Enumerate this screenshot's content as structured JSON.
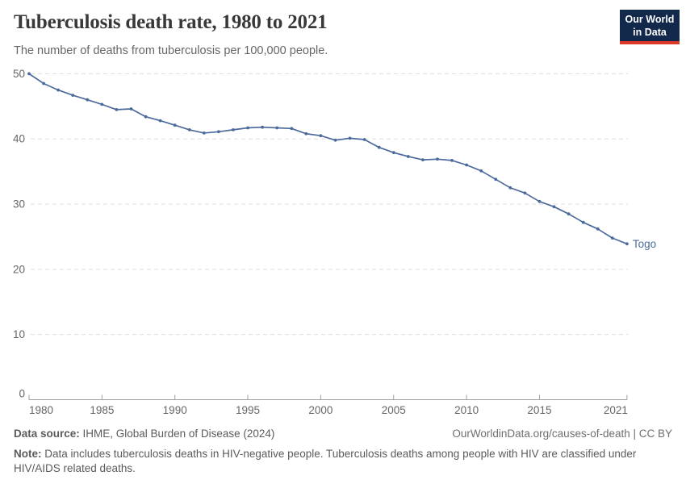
{
  "header": {
    "title": "Tuberculosis death rate, 1980 to 2021",
    "subtitle": "The number of deaths from tuberculosis per 100,000 people."
  },
  "logo": {
    "line1": "Our World",
    "line2": "in Data",
    "bg_color": "#12294B",
    "accent_color": "#DB3A2B"
  },
  "chart_data": {
    "type": "line",
    "title": "Tuberculosis death rate, 1980 to 2021",
    "x": [
      1980,
      1981,
      1982,
      1983,
      1984,
      1985,
      1986,
      1987,
      1988,
      1989,
      1990,
      1991,
      1992,
      1993,
      1994,
      1995,
      1996,
      1997,
      1998,
      1999,
      2000,
      2001,
      2002,
      2003,
      2004,
      2005,
      2006,
      2007,
      2008,
      2009,
      2010,
      2011,
      2012,
      2013,
      2014,
      2015,
      2016,
      2017,
      2018,
      2019,
      2020,
      2021
    ],
    "series": [
      {
        "name": "Togo",
        "color": "#4C6A9C",
        "values": [
          50.0,
          48.5,
          47.5,
          46.7,
          46.0,
          45.3,
          44.5,
          44.6,
          43.4,
          42.8,
          42.1,
          41.4,
          40.9,
          41.1,
          41.4,
          41.7,
          41.8,
          41.7,
          41.6,
          40.8,
          40.5,
          39.8,
          40.1,
          39.9,
          38.7,
          37.9,
          37.3,
          36.8,
          36.9,
          36.7,
          36.0,
          35.1,
          33.8,
          32.5,
          31.7,
          30.4,
          29.6,
          28.5,
          27.2,
          26.2,
          24.8,
          23.9
        ]
      }
    ],
    "xlabel": "",
    "ylabel": "",
    "ylim": [
      0,
      50
    ],
    "yticks": [
      0,
      10,
      20,
      30,
      40,
      50
    ],
    "xticks": [
      1980,
      1985,
      1990,
      1995,
      2000,
      2005,
      2010,
      2015,
      2021
    ],
    "grid": "horizontal-dashed",
    "legend": "end-of-line-label",
    "grid_color": "#dedede",
    "axis_color": "#a0a0a0",
    "tick_label_color": "#666666"
  },
  "footer": {
    "data_source_label": "Data source:",
    "data_source_value": " IHME, Global Burden of Disease (2024)",
    "link_text": "OurWorldinData.org/causes-of-death | CC BY",
    "note_label": "Note:",
    "note_text": " Data includes tuberculosis deaths in HIV-negative people. Tuberculosis deaths among people with HIV are classified under HIV/AIDS related deaths."
  }
}
